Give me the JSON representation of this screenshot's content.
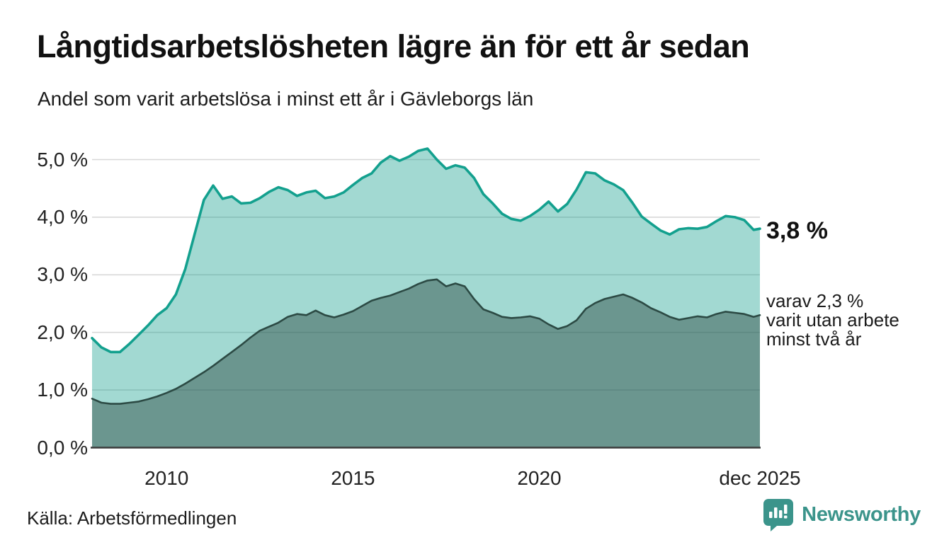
{
  "header": {
    "title": "Långtidsarbetslösheten lägre än för ett år sedan",
    "subtitle": "Andel som varit arbetslösa i minst ett år i Gävleborgs län"
  },
  "annotations": {
    "latest_value": "3,8 %",
    "secondary_line1": "varav 2,3 %",
    "secondary_line2": "varit utan arbete",
    "secondary_line3": "minst två år"
  },
  "footer": {
    "source": "Källa: Arbetsförmedlingen",
    "brand": "Newsworthy"
  },
  "colors": {
    "accent_teal": "#13a08e",
    "dark_line": "#2c4a44",
    "fill_top": "rgba(22,160,143,0.40)",
    "fill_bottom": "rgba(44,74,68,0.47)",
    "gridline": "#d8d8d8",
    "baseline": "#3a3a3a",
    "brand_teal": "#3b948b",
    "text": "#1a1a1a"
  },
  "chart_data": {
    "type": "area",
    "title": "Långtidsarbetslösheten lägre än för ett år sedan",
    "subtitle": "Andel som varit arbetslösa i minst ett år i Gävleborgs län",
    "xlabel": "",
    "ylabel": "",
    "grid": true,
    "xlim": [
      2008,
      2025.92
    ],
    "ylim": [
      0,
      5.25
    ],
    "x_axis": {
      "tick_labels": [
        "2010",
        "2015",
        "2020",
        "dec 2025"
      ],
      "tick_positions": [
        2010,
        2015,
        2020,
        2025.92
      ]
    },
    "y_axis": {
      "tick_labels": [
        "5,0 %",
        "4,0 %",
        "3,0 %",
        "2,0 %",
        "1,0 %",
        "0,0 %"
      ],
      "tick_values": [
        5,
        4,
        3,
        2,
        1,
        0
      ],
      "unit": "%"
    },
    "x": [
      2008.0,
      2008.25,
      2008.5,
      2008.75,
      2009.0,
      2009.25,
      2009.5,
      2009.75,
      2010.0,
      2010.25,
      2010.5,
      2010.75,
      2011.0,
      2011.25,
      2011.5,
      2011.75,
      2012.0,
      2012.25,
      2012.5,
      2012.75,
      2013.0,
      2013.25,
      2013.5,
      2013.75,
      2014.0,
      2014.25,
      2014.5,
      2014.75,
      2015.0,
      2015.25,
      2015.5,
      2015.75,
      2016.0,
      2016.25,
      2016.5,
      2016.75,
      2017.0,
      2017.25,
      2017.5,
      2017.75,
      2018.0,
      2018.25,
      2018.5,
      2018.75,
      2019.0,
      2019.25,
      2019.5,
      2019.75,
      2020.0,
      2020.25,
      2020.5,
      2020.75,
      2021.0,
      2021.25,
      2021.5,
      2021.75,
      2022.0,
      2022.25,
      2022.5,
      2022.75,
      2023.0,
      2023.25,
      2023.5,
      2023.75,
      2024.0,
      2024.25,
      2024.5,
      2024.75,
      2025.0,
      2025.25,
      2025.5,
      2025.75,
      2025.92
    ],
    "series": [
      {
        "name": "Andel som varit arbetslösa minst ett år",
        "latest_label": "3,8 %",
        "values": [
          1.9,
          1.74,
          1.66,
          1.66,
          1.8,
          1.96,
          2.12,
          2.3,
          2.42,
          2.66,
          3.1,
          3.7,
          4.3,
          4.55,
          4.32,
          4.36,
          4.24,
          4.25,
          4.33,
          4.44,
          4.52,
          4.47,
          4.37,
          4.43,
          4.46,
          4.33,
          4.36,
          4.43,
          4.56,
          4.68,
          4.76,
          4.95,
          5.06,
          4.98,
          5.05,
          5.15,
          5.19,
          5.0,
          4.84,
          4.9,
          4.86,
          4.68,
          4.4,
          4.24,
          4.06,
          3.97,
          3.94,
          4.02,
          4.13,
          4.27,
          4.1,
          4.23,
          4.48,
          4.78,
          4.76,
          4.64,
          4.57,
          4.47,
          4.25,
          4.01,
          3.89,
          3.77,
          3.7,
          3.79,
          3.81,
          3.8,
          3.83,
          3.93,
          4.02,
          4.0,
          3.95,
          3.78,
          3.8
        ]
      },
      {
        "name": "varav varit utan arbete minst två år",
        "latest_label": "2,3 %",
        "values": [
          0.85,
          0.78,
          0.76,
          0.76,
          0.78,
          0.8,
          0.84,
          0.89,
          0.95,
          1.02,
          1.11,
          1.21,
          1.31,
          1.42,
          1.54,
          1.66,
          1.78,
          1.91,
          2.03,
          2.1,
          2.17,
          2.27,
          2.32,
          2.3,
          2.38,
          2.3,
          2.26,
          2.31,
          2.37,
          2.46,
          2.55,
          2.6,
          2.64,
          2.7,
          2.76,
          2.84,
          2.9,
          2.92,
          2.8,
          2.85,
          2.8,
          2.58,
          2.4,
          2.34,
          2.27,
          2.25,
          2.26,
          2.28,
          2.24,
          2.14,
          2.06,
          2.11,
          2.21,
          2.41,
          2.51,
          2.58,
          2.62,
          2.66,
          2.6,
          2.52,
          2.42,
          2.35,
          2.27,
          2.22,
          2.25,
          2.28,
          2.26,
          2.32,
          2.36,
          2.34,
          2.32,
          2.27,
          2.3
        ]
      }
    ]
  }
}
